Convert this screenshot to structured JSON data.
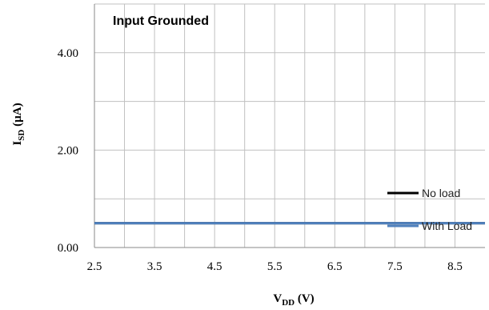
{
  "chart_data": {
    "type": "line",
    "annotation": "Input Grounded",
    "xlabel": {
      "main": "V",
      "sub": "DD",
      "unit": " (V)"
    },
    "ylabel": {
      "main": "I",
      "sub": "SD",
      "unit": " (µA)"
    },
    "xlim": [
      2.5,
      9.0
    ],
    "ylim": [
      0,
      5.0
    ],
    "x_ticks": [
      "2.5",
      "3.5",
      "4.5",
      "5.5",
      "6.5",
      "7.5",
      "8.5"
    ],
    "y_ticks": [
      "0.00",
      "2.00",
      "4.00"
    ],
    "grid": true,
    "legend_position": "right",
    "series": [
      {
        "name": "No load",
        "color": "#000000",
        "x": [
          2.5,
          9.0
        ],
        "y": [
          0.5,
          0.5
        ]
      },
      {
        "name": "With Load",
        "color": "#4f81bd",
        "x": [
          2.5,
          9.0
        ],
        "y": [
          0.5,
          0.5
        ]
      }
    ]
  }
}
